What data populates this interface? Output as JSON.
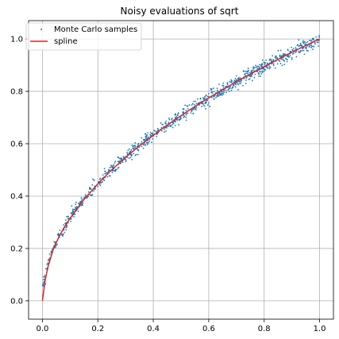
{
  "chart_data": {
    "type": "scatter",
    "title": "Noisy evaluations of sqrt",
    "xlabel": "",
    "ylabel": "",
    "xlim": [
      -0.05,
      1.05
    ],
    "ylim": [
      -0.07,
      1.07
    ],
    "xticks": [
      0.0,
      0.2,
      0.4,
      0.6,
      0.8,
      1.0
    ],
    "xtick_labels": [
      "0.0",
      "0.2",
      "0.4",
      "0.6",
      "0.8",
      "1.0"
    ],
    "yticks": [
      0.0,
      0.2,
      0.4,
      0.6,
      0.8,
      1.0
    ],
    "ytick_labels": [
      "0.0",
      "0.2",
      "0.4",
      "0.6",
      "0.8",
      "1.0"
    ],
    "grid": true,
    "legend": {
      "placement": "top-left",
      "entries": [
        {
          "name": "Monte Carlo samples",
          "marker": "dot",
          "color": "#1f77b4"
        },
        {
          "name": "spline",
          "marker": "line",
          "color": "#d62728"
        }
      ]
    },
    "series": [
      {
        "name": "Monte Carlo samples",
        "kind": "scatter",
        "color": "#1f77b4",
        "function": "sqrt(x) with small noise",
        "x_range": [
          0.0,
          1.0
        ],
        "n_points": 1000,
        "noise_sd": 0.012
      },
      {
        "name": "spline",
        "kind": "line",
        "color": "#d62728",
        "x": [
          0.0,
          0.01,
          0.02,
          0.04,
          0.06,
          0.08,
          0.1,
          0.15,
          0.2,
          0.25,
          0.3,
          0.35,
          0.4,
          0.45,
          0.5,
          0.55,
          0.6,
          0.65,
          0.7,
          0.75,
          0.8,
          0.85,
          0.9,
          0.95,
          1.0
        ],
        "y": [
          0.0,
          0.08,
          0.13,
          0.2,
          0.245,
          0.283,
          0.316,
          0.387,
          0.447,
          0.5,
          0.548,
          0.592,
          0.632,
          0.671,
          0.707,
          0.742,
          0.775,
          0.806,
          0.837,
          0.866,
          0.894,
          0.922,
          0.949,
          0.975,
          1.0
        ]
      }
    ]
  }
}
